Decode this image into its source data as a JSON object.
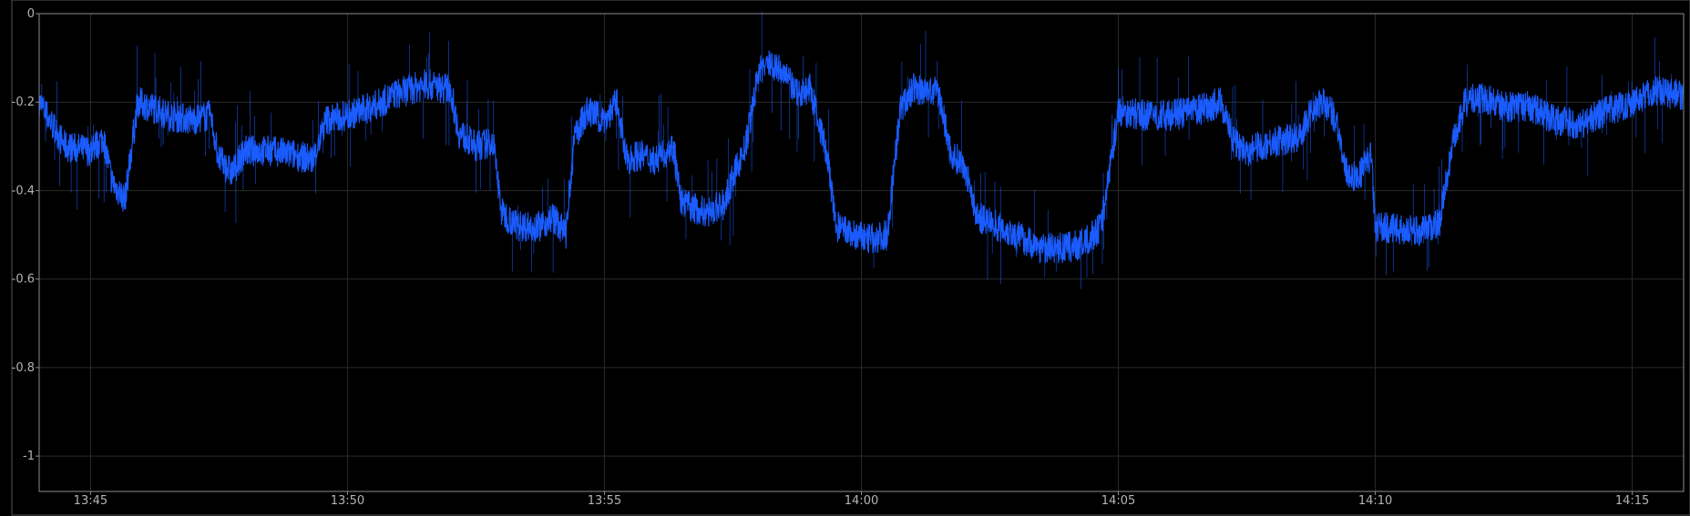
{
  "chart_data": {
    "type": "line",
    "title": "",
    "xlabel": "",
    "ylabel": "",
    "ylim": [
      -1.08,
      0
    ],
    "y_ticks": [
      0,
      -0.2,
      -0.4,
      -0.6,
      -0.8,
      -1
    ],
    "y_tick_labels": [
      "0",
      "-0.2",
      "-0.4",
      "-0.6",
      "-0.8",
      "-1"
    ],
    "x_range": [
      "13:44",
      "14:16"
    ],
    "x_tick_labels": [
      "13:45",
      "13:50",
      "13:55",
      "14:00",
      "14:05",
      "14:10",
      "14:15"
    ],
    "grid": true,
    "legend": "none",
    "colors": {
      "background": "#000000",
      "series": "#1a5cff",
      "grid": "#2a2a2a",
      "axis": "#8c8c8c",
      "tick_label": "#b4b4b4"
    },
    "series": [
      {
        "x": [
          "13:44:00",
          "13:44:30",
          "13:45:00",
          "13:45:15",
          "13:45:25",
          "13:45:40",
          "13:45:55",
          "13:46:10",
          "13:46:30",
          "13:47:00",
          "13:47:20",
          "13:47:30",
          "13:47:45",
          "13:48:00",
          "13:48:30",
          "13:49:00",
          "13:49:20",
          "13:49:35",
          "13:50:00",
          "13:50:30",
          "13:51:00",
          "13:51:30",
          "13:52:00",
          "13:52:10",
          "13:52:30",
          "13:52:50",
          "13:53:00",
          "13:53:20",
          "13:53:45",
          "13:54:00",
          "13:54:15",
          "13:54:25",
          "13:54:40",
          "13:55:00",
          "13:55:15",
          "13:55:25",
          "13:55:40",
          "13:56:00",
          "13:56:20",
          "13:56:30",
          "13:56:45",
          "13:57:00",
          "13:57:20",
          "13:57:30",
          "13:57:45",
          "13:58:00",
          "13:58:15",
          "13:58:30",
          "13:58:45",
          "13:59:00",
          "13:59:20",
          "13:59:30",
          "13:59:50",
          "14:00:10",
          "14:00:30",
          "14:00:45",
          "14:01:00",
          "14:01:30",
          "14:01:45",
          "14:02:00",
          "14:02:15",
          "14:02:30",
          "14:03:00",
          "14:03:30",
          "14:04:00",
          "14:04:20",
          "14:04:40",
          "14:04:50",
          "14:05:00",
          "14:05:30",
          "14:06:00",
          "14:06:30",
          "14:07:00",
          "14:07:15",
          "14:07:30",
          "14:08:00",
          "14:08:30",
          "14:08:45",
          "14:09:00",
          "14:09:15",
          "14:09:25",
          "14:09:40",
          "14:09:55",
          "14:10:00",
          "14:10:30",
          "14:11:00",
          "14:11:15",
          "14:11:30",
          "14:11:45",
          "14:12:00",
          "14:12:30",
          "14:13:00",
          "14:13:30",
          "14:14:00",
          "14:14:30",
          "14:15:00",
          "14:15:30",
          "14:16:00"
        ],
        "values": [
          -0.2,
          -0.3,
          -0.31,
          -0.28,
          -0.38,
          -0.42,
          -0.2,
          -0.21,
          -0.23,
          -0.24,
          -0.23,
          -0.33,
          -0.36,
          -0.31,
          -0.31,
          -0.32,
          -0.33,
          -0.24,
          -0.23,
          -0.21,
          -0.18,
          -0.16,
          -0.17,
          -0.27,
          -0.3,
          -0.29,
          -0.45,
          -0.48,
          -0.48,
          -0.46,
          -0.5,
          -0.28,
          -0.22,
          -0.24,
          -0.2,
          -0.33,
          -0.32,
          -0.33,
          -0.3,
          -0.43,
          -0.44,
          -0.45,
          -0.43,
          -0.37,
          -0.3,
          -0.13,
          -0.11,
          -0.14,
          -0.18,
          -0.17,
          -0.32,
          -0.48,
          -0.5,
          -0.51,
          -0.5,
          -0.22,
          -0.17,
          -0.18,
          -0.32,
          -0.34,
          -0.46,
          -0.47,
          -0.5,
          -0.53,
          -0.53,
          -0.52,
          -0.48,
          -0.35,
          -0.22,
          -0.23,
          -0.23,
          -0.22,
          -0.2,
          -0.29,
          -0.31,
          -0.29,
          -0.28,
          -0.22,
          -0.2,
          -0.24,
          -0.36,
          -0.37,
          -0.32,
          -0.48,
          -0.49,
          -0.49,
          -0.47,
          -0.3,
          -0.2,
          -0.19,
          -0.21,
          -0.21,
          -0.24,
          -0.25,
          -0.22,
          -0.2,
          -0.17,
          -0.19
        ]
      }
    ]
  }
}
